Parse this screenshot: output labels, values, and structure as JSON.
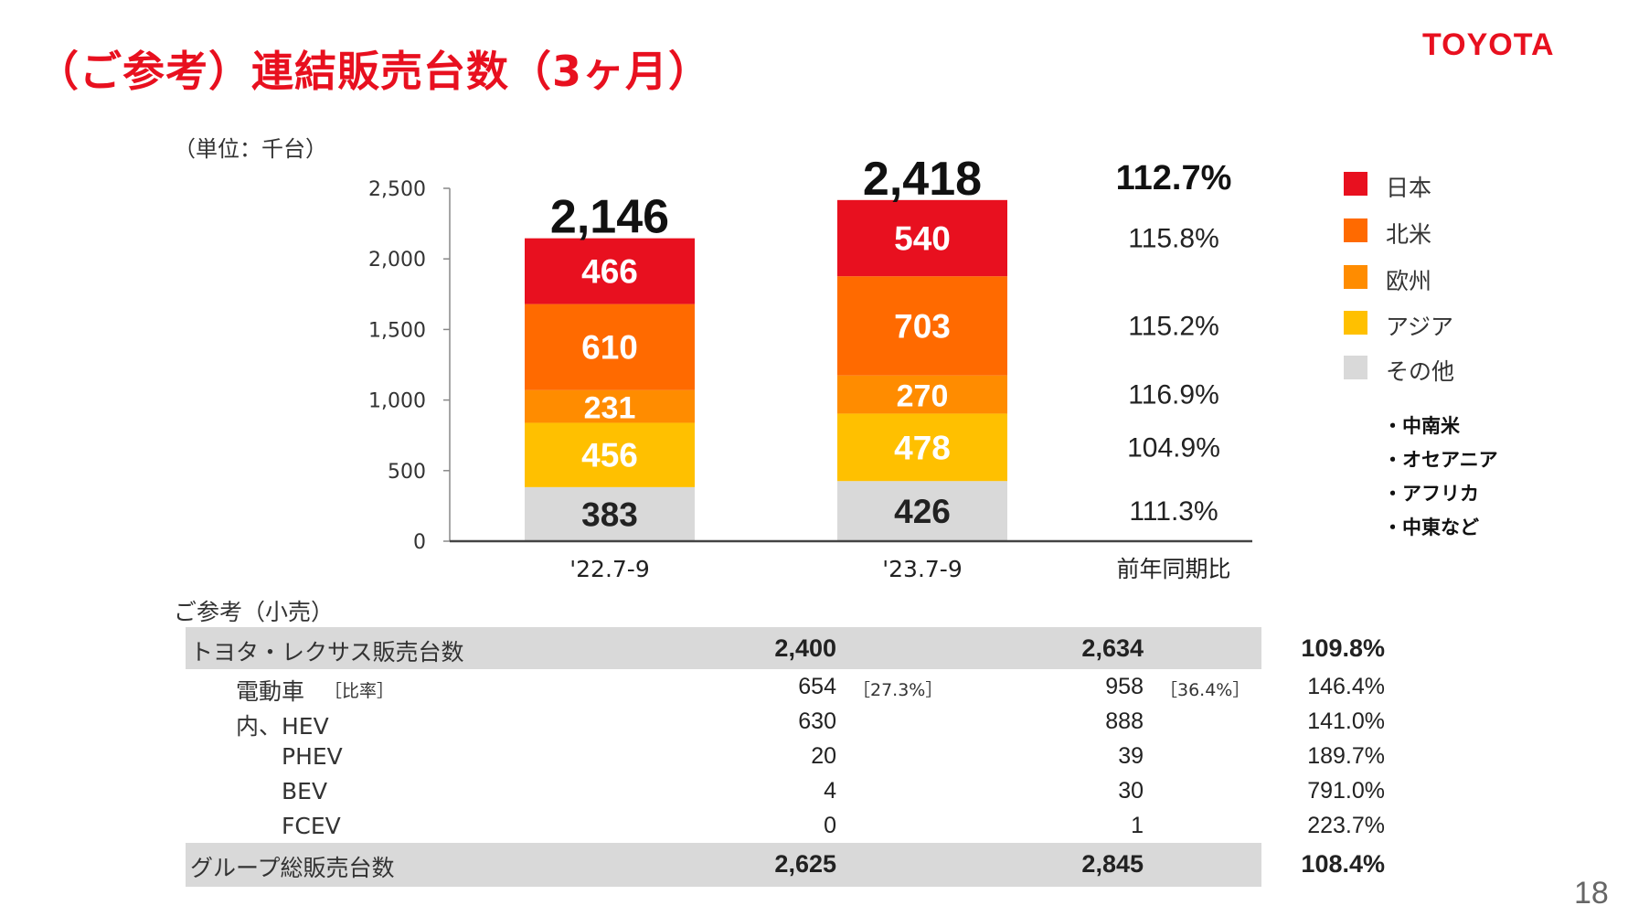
{
  "page": {
    "title": "（ご参考）連結販売台数（3ヶ月）",
    "logo": "TOYOTA",
    "unit_label": "（単位：千台）",
    "page_number": "18"
  },
  "colors": {
    "title": "#e8101f",
    "japan": "#e8101f",
    "north_america": "#ff6a00",
    "europe": "#ff8c00",
    "asia": "#ffc000",
    "other": "#d9d9d9",
    "table_shade": "#d9d9d9"
  },
  "chart_data": {
    "type": "bar",
    "stacked": true,
    "categories": [
      "'22.7-9",
      "'23.7-9"
    ],
    "yticks": [
      "0",
      "500",
      "1,000",
      "1,500",
      "2,000",
      "2,500"
    ],
    "ylim": [
      0,
      2500
    ],
    "totals": [
      "2,146",
      "2,418"
    ],
    "series": [
      {
        "name": "その他",
        "values": [
          383,
          426
        ],
        "color": "#d9d9d9",
        "text_color": "#222222"
      },
      {
        "name": "アジア",
        "values": [
          456,
          478
        ],
        "color": "#ffc000",
        "text_color": "#ffffff"
      },
      {
        "name": "欧州",
        "values": [
          231,
          270
        ],
        "color": "#ff8c00",
        "text_color": "#ffffff"
      },
      {
        "name": "北米",
        "values": [
          610,
          703
        ],
        "color": "#ff6a00",
        "text_color": "#ffffff"
      },
      {
        "name": "日本",
        "values": [
          466,
          540
        ],
        "color": "#e8101f",
        "text_color": "#ffffff"
      }
    ],
    "yoy_header": "前年同期比",
    "yoy_total": "112.7%",
    "yoy_by_series": [
      "111.3%",
      "104.9%",
      "116.9%",
      "115.2%",
      "115.8%"
    ],
    "legend_position": "right"
  },
  "legend": {
    "items": [
      {
        "label": "日本",
        "color": "#e8101f"
      },
      {
        "label": "北米",
        "color": "#ff6a00"
      },
      {
        "label": "欧州",
        "color": "#ff8c00"
      },
      {
        "label": "アジア",
        "color": "#ffc000"
      },
      {
        "label": "その他",
        "color": "#d9d9d9"
      }
    ],
    "other_notes": [
      "・中南米",
      "・オセアニア",
      "・アフリカ",
      "・中東など"
    ]
  },
  "reference": {
    "label": "ご参考（小売）",
    "rows": [
      {
        "label": "トヨタ・レクサス販売台数",
        "v1": "2,400",
        "v2": "2,634",
        "pct": "109.8%",
        "shaded": true,
        "bold": true
      },
      {
        "label": "電動車",
        "sublabel": "［比率］",
        "v1": "654",
        "s1": "［27.3%］",
        "v2": "958",
        "s2": "［36.4%］",
        "pct": "146.4%"
      },
      {
        "label": "内、HEV",
        "v1": "630",
        "v2": "888",
        "pct": "141.0%"
      },
      {
        "label": "PHEV",
        "v1": "20",
        "v2": "39",
        "pct": "189.7%"
      },
      {
        "label": "BEV",
        "v1": "4",
        "v2": "30",
        "pct": "791.0%"
      },
      {
        "label": "FCEV",
        "v1": "0",
        "v2": "1",
        "pct": "223.7%"
      },
      {
        "label": "グループ総販売台数",
        "v1": "2,625",
        "v2": "2,845",
        "pct": "108.4%",
        "shaded": true,
        "bold": true
      }
    ]
  }
}
